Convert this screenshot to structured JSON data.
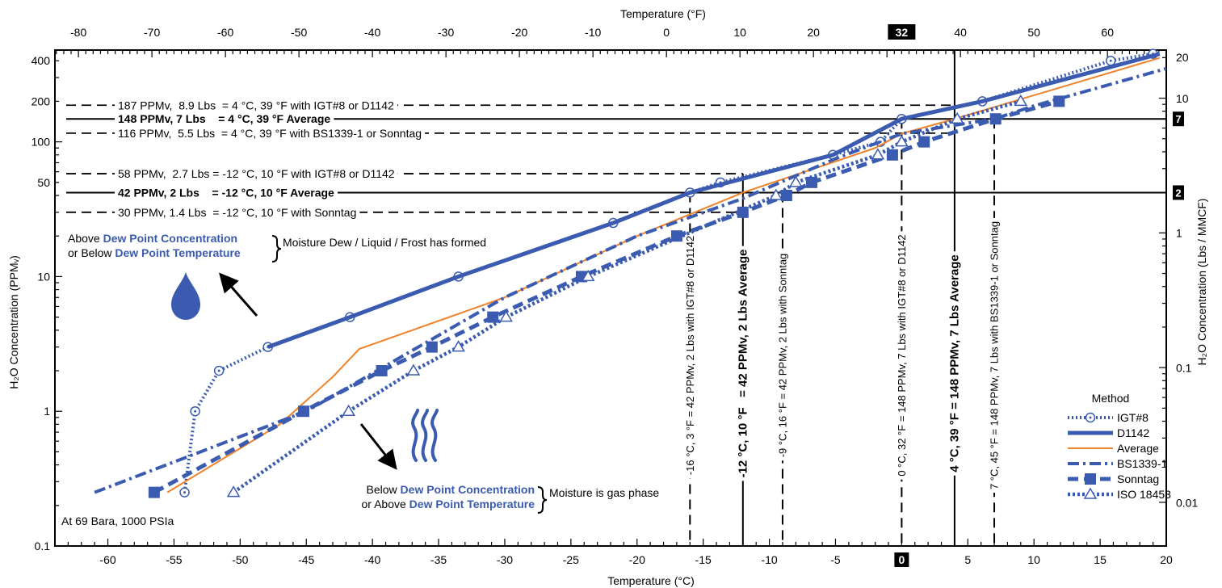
{
  "chart_data": {
    "type": "line",
    "title": "",
    "xlabel": "Temperature (°C)",
    "x2label": "Temperature (°F)",
    "ylabel": "H₂O Concentration (PPMᵥ)",
    "y2label": "H₂O Concentration (Lbs / MMCF)",
    "xlim": [
      -64,
      20
    ],
    "ylim": [
      0.1,
      480
    ],
    "yscale": "log",
    "x_ticks": [
      -60,
      -55,
      -50,
      -45,
      -40,
      -35,
      -30,
      -25,
      -20,
      -15,
      -10,
      -5,
      0,
      5,
      10,
      15,
      20
    ],
    "x_tick_labels": [
      "-60",
      "-55",
      "-50",
      "-45",
      "-40",
      "-35",
      "-30",
      "-25",
      "-20",
      "-15",
      "-10",
      "-5",
      "0",
      "5",
      "10",
      "15",
      "20"
    ],
    "x2_ticks_f": [
      -80,
      -70,
      -60,
      -50,
      -40,
      -30,
      -20,
      -10,
      0,
      10,
      20,
      32,
      40,
      50,
      60
    ],
    "x2_tick_labels": [
      "-80",
      "-70",
      "-60",
      "-50",
      "-40",
      "-30",
      "-20",
      "-10",
      "0",
      "10",
      "20",
      "32",
      "40",
      "50",
      "60"
    ],
    "y_ticks": [
      0.1,
      1,
      10,
      50,
      100,
      200,
      400
    ],
    "y_tick_labels": [
      "0.1",
      "1",
      "10",
      "50",
      "100",
      "200",
      "400"
    ],
    "y2_ticks_ppm": [
      0.21,
      2.1,
      21,
      210,
      424
    ],
    "y2_tick_labels": [
      "0.01",
      "0.1",
      "1",
      "10",
      "20"
    ],
    "y2_marks": [
      {
        "ppm": 42,
        "label": "2"
      },
      {
        "ppm": 148,
        "label": "7"
      }
    ],
    "series": [
      {
        "name": "IGT#8",
        "color": "#3a5bb0",
        "style": "dotted",
        "marker": "circle",
        "x": [
          -54.2,
          -53.4,
          -51.6,
          -47.9,
          -41.7,
          -33.5,
          -21.8,
          -16,
          -13.7,
          -5.2,
          -1.6,
          0,
          6.1,
          15.8,
          19
        ],
        "y": [
          0.25,
          1,
          2,
          3,
          5,
          10,
          25,
          42,
          50,
          80,
          100,
          148,
          200,
          400,
          450
        ]
      },
      {
        "name": "D1142",
        "color": "#3a5bb0",
        "style": "solid-thick",
        "marker": "none",
        "x": [
          -47.9,
          -41.7,
          -33.5,
          -21.8,
          -16,
          -5.2,
          0,
          6.1,
          19.5
        ],
        "y": [
          3,
          5,
          10,
          25,
          42,
          80,
          148,
          200,
          450
        ]
      },
      {
        "name": "Average",
        "color": "#f0822a",
        "style": "solid-thin",
        "marker": "none",
        "x": [
          -55.5,
          -47,
          -43,
          -41,
          -30,
          -20,
          -12,
          -2,
          0,
          4,
          19.5
        ],
        "y": [
          0.25,
          0.8,
          1.8,
          2.9,
          7,
          20,
          42,
          90,
          115,
          148,
          420
        ]
      },
      {
        "name": "BS1339-1",
        "color": "#3a5bb0",
        "style": "dashdot",
        "marker": "none",
        "x": [
          -61,
          -45,
          -30,
          -20,
          -12,
          -5,
          0,
          7,
          10,
          20
        ],
        "y": [
          0.25,
          1,
          7,
          20,
          38,
          75,
          115,
          148,
          185,
          350
        ]
      },
      {
        "name": "Sonntag",
        "color": "#3a5bb0",
        "style": "dashed",
        "marker": "square",
        "x": [
          -56.5,
          -45.2,
          -39.3,
          -35.5,
          -30.9,
          -24.2,
          -17,
          -12,
          -8.7,
          -6.8,
          -0.7,
          1.7,
          7.1,
          11.9
        ],
        "y": [
          0.25,
          1,
          2,
          3,
          5,
          10,
          20,
          30,
          40,
          50,
          80,
          100,
          148,
          200
        ]
      },
      {
        "name": "ISO 18453",
        "color": "#3a5bb0",
        "style": "dotted-dashed",
        "marker": "triangle",
        "x": [
          -50.5,
          -41.8,
          -36.9,
          -33.5,
          -29.9,
          -23.7,
          -9.5,
          -8,
          -1.8,
          0,
          4.2,
          9
        ],
        "y": [
          0.25,
          1,
          2,
          3,
          5,
          10,
          40,
          50,
          80,
          100,
          148,
          200
        ]
      }
    ],
    "reference_lines": {
      "horizontal": [
        {
          "ppm": 187,
          "x_end": 4,
          "style": "dashed",
          "bold": false,
          "label": "187 PPMv,  8.9 Lbs  = 4 °C, 39 °F with IGT#8 or D1142"
        },
        {
          "ppm": 148,
          "x_end": 20,
          "style": "solid",
          "bold": true,
          "label": "148 PPMv, 7 Lbs    = 4 °C, 39 °F Average"
        },
        {
          "ppm": 116,
          "x_end": 4,
          "style": "dashed",
          "bold": false,
          "label": "116 PPMv,  5.5 Lbs  = 4 °C, 39 °F with BS1339-1 or Sonntag"
        },
        {
          "ppm": 58,
          "x_end": -12,
          "style": "dashed",
          "bold": false,
          "label": "58 PPMv,  2.7 Lbs = -12 °C, 10 °F with IGT#8 or D1142"
        },
        {
          "ppm": 42,
          "x_end": 20,
          "style": "solid",
          "bold": true,
          "label": "42 PPMv, 2 Lbs    = -12 °C, 10 °F Average"
        },
        {
          "ppm": 30,
          "x_end": -12,
          "style": "dashed",
          "bold": false,
          "label": "30 PPMv, 1.4 Lbs  = -12 °C, 10 °F with Sonntag"
        }
      ],
      "vertical": [
        {
          "x": -16,
          "ppm_top": 42,
          "style": "dashed",
          "bold": false,
          "label": "-16 °C, 3 °F = 42 PPMv, 2 Lbs with IGT#8 or D1142"
        },
        {
          "x": -12,
          "ppm_top": 58,
          "style": "solid",
          "bold": true,
          "label": "-12 °C, 10 °F   = 42 PPMv, 2 Lbs Average"
        },
        {
          "x": -9,
          "ppm_top": 42,
          "style": "dashed",
          "bold": false,
          "label": "-9 °C, 16 °F = 42 PPMv, 2 Lbs with Sonntag"
        },
        {
          "x": 0,
          "ppm_top": 148,
          "style": "dashed",
          "bold": false,
          "label": "0 °C, 32 °F = 148 PPMv, 7 Lbs with IGT#8 or D1142"
        },
        {
          "x": 4,
          "ppm_top": 480,
          "style": "solid",
          "bold": true,
          "label": "4 °C, 39 °F = 148 PPMv, 7 Lbs Average"
        },
        {
          "x": 7,
          "ppm_top": 148,
          "style": "dashed",
          "bold": false,
          "label": "7 °C, 45 °F = 148 PPMv, 7 Lbs with BS1339-1 or Sonntag"
        }
      ]
    },
    "annotations": {
      "above_line1_prefix": "Above ",
      "above_line1_hl": "Dew Point Concentration",
      "above_line2_prefix": "or Below ",
      "above_line2_hl": "Dew Point Temperature",
      "above_note": "Moisture Dew / Liquid / Frost has formed",
      "below_line1_prefix": "Below ",
      "below_line1_hl": "Dew Point Concentration",
      "below_line2_prefix": "or Above ",
      "below_line2_hl": "Dew Point Temperature",
      "below_note": "Moisture is gas phase",
      "conditions": "At 69 Bara, 1000 PSIa"
    },
    "legend": {
      "title": "Method",
      "placement": "bottom-right"
    },
    "highlight_color": "#3a5bb0"
  }
}
